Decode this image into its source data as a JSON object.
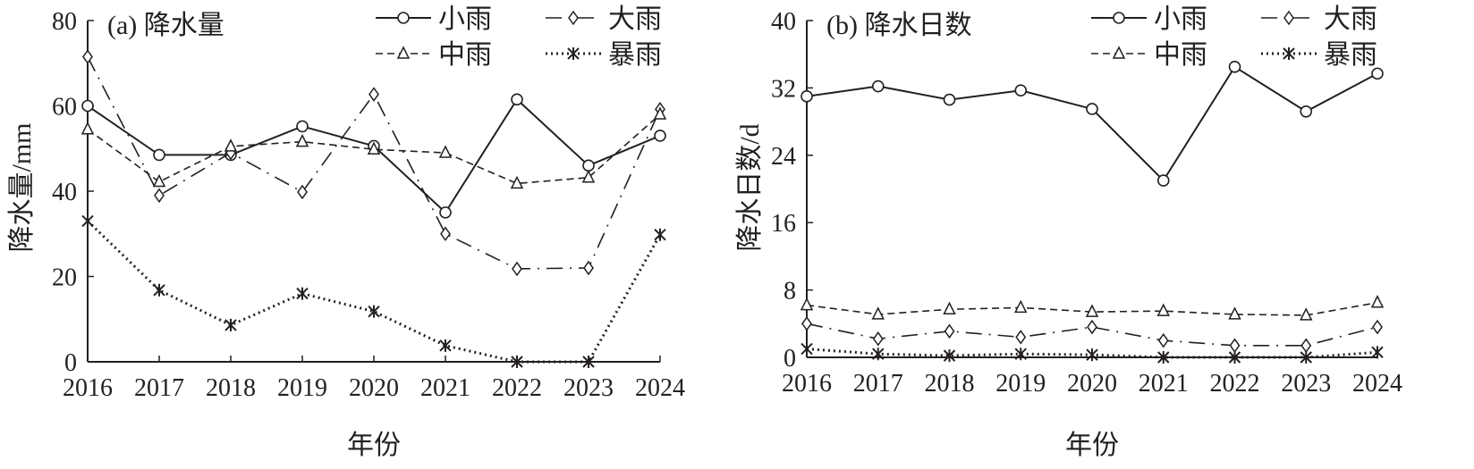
{
  "chart_data": [
    {
      "type": "line",
      "title": "(a) 降水量",
      "xlabel": "年份",
      "ylabel": "降水量/mm",
      "ylim": [
        0,
        80
      ],
      "yticks": [
        0,
        20,
        40,
        60,
        80
      ],
      "grid": false,
      "legend_position": "top-right",
      "x": [
        "2016",
        "2017",
        "2018",
        "2019",
        "2020",
        "2021",
        "2022",
        "2023",
        "2024"
      ],
      "series": [
        {
          "name": "小雨",
          "style": "solid",
          "marker": "circle",
          "values": [
            60,
            48.5,
            48.5,
            55.2,
            50.6,
            35,
            61.5,
            46,
            53
          ]
        },
        {
          "name": "大雨",
          "style": "dashdot",
          "marker": "diamond",
          "values": [
            71.5,
            39,
            49,
            39.8,
            62.7,
            30,
            21.8,
            22,
            59.2
          ]
        },
        {
          "name": "中雨",
          "style": "dashed",
          "marker": "triangle",
          "values": [
            54.5,
            42.2,
            50.5,
            51.6,
            49.8,
            49,
            41.8,
            43.2,
            58
          ]
        },
        {
          "name": "暴雨",
          "style": "dotted",
          "marker": "asterisk",
          "values": [
            33,
            16.8,
            8.6,
            16,
            11.8,
            3.8,
            0,
            0,
            29.8
          ]
        }
      ]
    },
    {
      "type": "line",
      "title": "(b) 降水日数",
      "xlabel": "年份",
      "ylabel": "降水日数/d",
      "ylim": [
        0,
        40
      ],
      "yticks": [
        0,
        8,
        16,
        24,
        32,
        40
      ],
      "grid": false,
      "legend_position": "top-right",
      "x": [
        "2016",
        "2017",
        "2018",
        "2019",
        "2020",
        "2021",
        "2022",
        "2023",
        "2024"
      ],
      "series": [
        {
          "name": "小雨",
          "style": "solid",
          "marker": "circle",
          "values": [
            31,
            32.2,
            30.6,
            31.7,
            29.5,
            21,
            34.5,
            29.2,
            33.7
          ]
        },
        {
          "name": "大雨",
          "style": "dashdot",
          "marker": "diamond",
          "values": [
            4,
            2.2,
            3.1,
            2.4,
            3.6,
            2,
            1.4,
            1.4,
            3.6
          ]
        },
        {
          "name": "中雨",
          "style": "dashed",
          "marker": "triangle",
          "values": [
            6.2,
            5.1,
            5.7,
            5.9,
            5.4,
            5.5,
            5.1,
            5.0,
            6.5
          ]
        },
        {
          "name": "暴雨",
          "style": "dotted",
          "marker": "asterisk",
          "values": [
            1.0,
            0.4,
            0.2,
            0.4,
            0.3,
            0,
            0,
            0,
            0.6
          ]
        }
      ]
    }
  ]
}
